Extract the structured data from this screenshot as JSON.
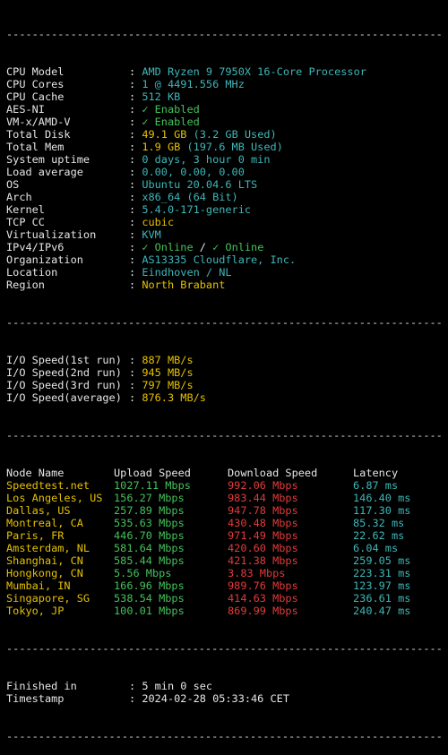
{
  "separator": "--------------------------------------------------------------------",
  "colon": ": ",
  "system": [
    {
      "key": "CPU Model",
      "value": "AMD Ryzen 9 7950X 16-Core Processor",
      "color": "teal"
    },
    {
      "key": "CPU Cores",
      "value": "1 @ 4491.556 MHz",
      "color": "teal"
    },
    {
      "key": "CPU Cache",
      "value": "512 KB",
      "color": "teal"
    },
    {
      "key": "AES-NI",
      "value": "✓ Enabled",
      "color": "grn"
    },
    {
      "key": "VM-x/AMD-V",
      "value": "✓ Enabled",
      "color": "grn"
    },
    {
      "key": "Total Disk",
      "value": "49.1 GB",
      "extra": " (3.2 GB Used)",
      "color": "yel",
      "extra_color": "teal"
    },
    {
      "key": "Total Mem",
      "value": "1.9 GB",
      "extra": " (197.6 MB Used)",
      "color": "yel",
      "extra_color": "teal"
    },
    {
      "key": "System uptime",
      "value": "0 days, 3 hour 0 min",
      "color": "teal"
    },
    {
      "key": "Load average",
      "value": "0.00, 0.00, 0.00",
      "color": "teal"
    },
    {
      "key": "OS",
      "value": "Ubuntu 20.04.6 LTS",
      "color": "teal"
    },
    {
      "key": "Arch",
      "value": "x86_64 (64 Bit)",
      "color": "teal"
    },
    {
      "key": "Kernel",
      "value": "5.4.0-171-generic",
      "color": "teal"
    },
    {
      "key": "TCP CC",
      "value": "cubic",
      "color": "yel"
    },
    {
      "key": "Virtualization",
      "value": "KVM",
      "color": "teal"
    },
    {
      "key": "IPv4/IPv6",
      "value": "✓ Online",
      "sep": " / ",
      "extra": "✓ Online",
      "color": "grn",
      "extra_color": "grn"
    },
    {
      "key": "Organization",
      "value": "AS13335 Cloudflare, Inc.",
      "color": "teal"
    },
    {
      "key": "Location",
      "value": "Eindhoven / NL",
      "color": "teal"
    },
    {
      "key": "Region",
      "value": "North Brabant",
      "color": "yel"
    }
  ],
  "io": [
    {
      "key": "I/O Speed(1st run)",
      "value": "887 MB/s"
    },
    {
      "key": "I/O Speed(2nd run)",
      "value": "945 MB/s"
    },
    {
      "key": "I/O Speed(3rd run)",
      "value": "797 MB/s"
    },
    {
      "key": "I/O Speed(average)",
      "value": "876.3 MB/s"
    }
  ],
  "speedtest": {
    "headers": [
      "Node Name",
      "Upload Speed",
      "Download Speed",
      "Latency"
    ],
    "rows": [
      [
        "Speedtest.net",
        "1027.11 Mbps",
        "992.06 Mbps",
        "6.87 ms"
      ],
      [
        "Los Angeles, US",
        "156.27 Mbps",
        "983.44 Mbps",
        "146.40 ms"
      ],
      [
        "Dallas, US",
        "257.89 Mbps",
        "947.78 Mbps",
        "117.30 ms"
      ],
      [
        "Montreal, CA",
        "535.63 Mbps",
        "430.48 Mbps",
        "85.32 ms"
      ],
      [
        "Paris, FR",
        "446.70 Mbps",
        "971.49 Mbps",
        "22.62 ms"
      ],
      [
        "Amsterdam, NL",
        "581.64 Mbps",
        "420.60 Mbps",
        "6.04 ms"
      ],
      [
        "Shanghai, CN",
        "585.44 Mbps",
        "421.38 Mbps",
        "259.05 ms"
      ],
      [
        "Hongkong, CN",
        "5.56 Mbps",
        "3.83 Mbps",
        "223.31 ms"
      ],
      [
        "Mumbai, IN",
        "166.96 Mbps",
        "989.76 Mbps",
        "123.97 ms"
      ],
      [
        "Singapore, SG",
        "538.54 Mbps",
        "414.63 Mbps",
        "236.61 ms"
      ],
      [
        "Tokyo, JP",
        "100.01 Mbps",
        "869.99 Mbps",
        "240.47 ms"
      ]
    ]
  },
  "footer": [
    {
      "key": "Finished in",
      "value": "5 min 0 sec"
    },
    {
      "key": "Timestamp",
      "value": "2024-02-28 05:33:46 CET"
    }
  ],
  "colors": {
    "background": "#000000",
    "teal": "#3fb6b8",
    "yellow": "#e5c100",
    "green": "#44c25a",
    "red": "#e23a3a",
    "text": "#e6e6e6"
  }
}
